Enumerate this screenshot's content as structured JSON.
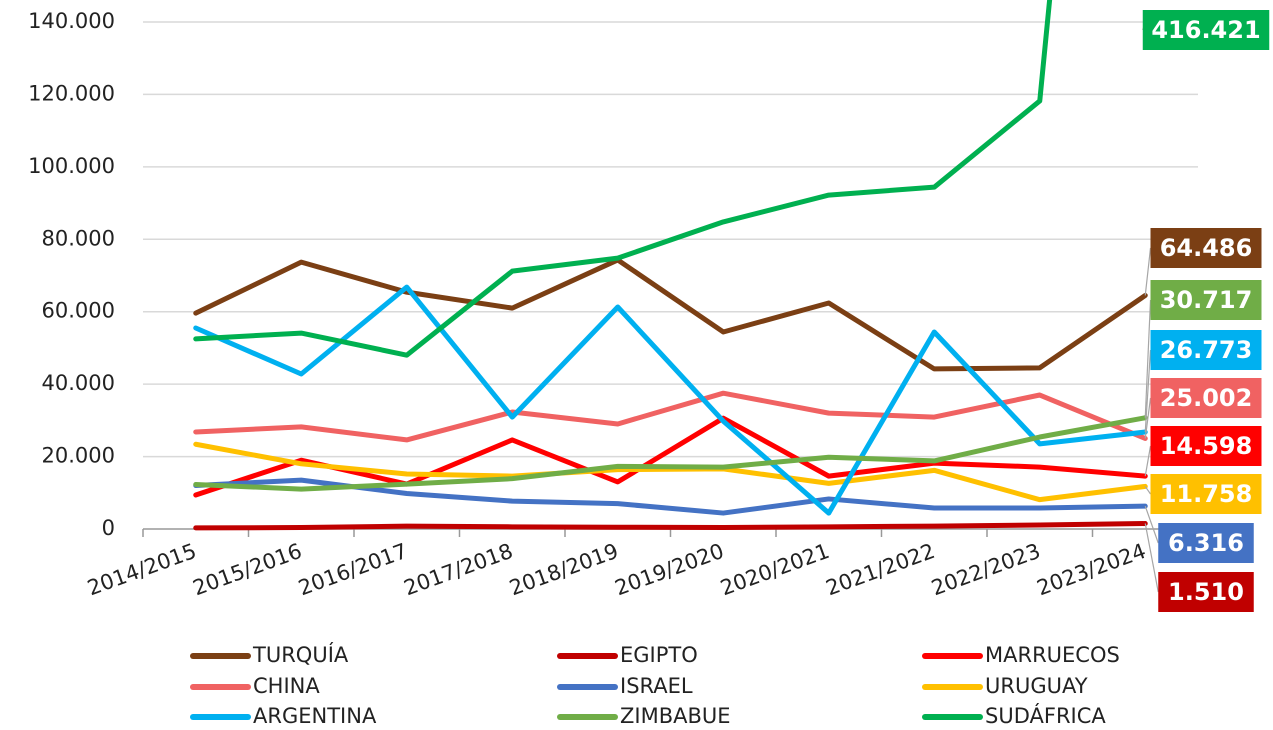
{
  "chart_data": {
    "type": "line",
    "categories": [
      "2014/2015",
      "2015/2016",
      "2016/2017",
      "2017/2018",
      "2018/2019",
      "2019/2020",
      "2020/2021",
      "2021/2022",
      "2022/2023",
      "2023/2024"
    ],
    "ylim": [
      0,
      140000
    ],
    "yticks": [
      0,
      {
        "value": 20000,
        "label": "20.000"
      },
      {
        "value": 40000,
        "label": "40.000"
      },
      {
        "value": 60000,
        "label": "60.000"
      },
      {
        "value": 80000,
        "label": "80.000"
      },
      {
        "value": 100000,
        "label": "100.000"
      },
      {
        "value": 120000,
        "label": "120.000"
      },
      {
        "value": 140000,
        "label": "140.000"
      }
    ],
    "grid": true,
    "legend": "bottom",
    "series": [
      {
        "name": "TURQUÍA",
        "color": "#7b3f14",
        "values": [
          59600,
          73700,
          65400,
          61000,
          74300,
          54400,
          62400,
          44200,
          44500,
          64486
        ],
        "value_labels": [
          null,
          null,
          null,
          null,
          null,
          null,
          null,
          null,
          null,
          "64.486"
        ]
      },
      {
        "name": "EGIPTO",
        "color": "#c00000",
        "values": [
          300,
          400,
          800,
          600,
          500,
          400,
          600,
          800,
          1100,
          1510
        ],
        "value_labels": [
          null,
          null,
          null,
          null,
          null,
          null,
          null,
          null,
          null,
          "1.510"
        ]
      },
      {
        "name": "MARRUECOS",
        "color": "#ff0000",
        "values": [
          9400,
          19000,
          12400,
          24600,
          13000,
          30600,
          14600,
          18200,
          17100,
          14598
        ],
        "value_labels": [
          null,
          null,
          null,
          null,
          null,
          null,
          null,
          null,
          null,
          "14.598"
        ]
      },
      {
        "name": "CHINA",
        "color": "#f06262",
        "values": [
          26800,
          28200,
          24600,
          32300,
          29000,
          37500,
          32000,
          30900,
          37000,
          25002
        ],
        "value_labels": [
          null,
          null,
          null,
          null,
          null,
          null,
          null,
          null,
          null,
          "25.002"
        ]
      },
      {
        "name": "ISRAEL",
        "color": "#4472c4",
        "values": [
          12000,
          13500,
          9800,
          7700,
          7000,
          4400,
          8300,
          5800,
          5800,
          6316
        ],
        "value_labels": [
          null,
          null,
          null,
          null,
          null,
          null,
          null,
          null,
          null,
          "6.316"
        ]
      },
      {
        "name": "URUGUAY",
        "color": "#ffc000",
        "values": [
          23400,
          18000,
          15200,
          14600,
          16400,
          16600,
          12600,
          16200,
          8100,
          11758
        ],
        "value_labels": [
          null,
          null,
          null,
          null,
          null,
          null,
          null,
          null,
          null,
          "11.758"
        ]
      },
      {
        "name": "ARGENTINA",
        "color": "#00b0f0",
        "values": [
          55500,
          42800,
          66800,
          30900,
          61300,
          29800,
          4400,
          54400,
          23500,
          26773
        ],
        "value_labels": [
          null,
          null,
          null,
          null,
          null,
          null,
          null,
          null,
          null,
          "26.773"
        ]
      },
      {
        "name": "ZIMBABUE",
        "color": "#70ad47",
        "values": [
          12300,
          11000,
          12400,
          13900,
          17300,
          17100,
          19800,
          18800,
          25400,
          30717
        ],
        "value_labels": [
          null,
          null,
          null,
          null,
          null,
          null,
          null,
          null,
          null,
          "30.717"
        ]
      },
      {
        "name": "SUDÁFRICA",
        "color": "#00b050",
        "values": [
          52500,
          54100,
          48000,
          71200,
          74800,
          84800,
          92200,
          94400,
          118200,
          416421
        ],
        "value_labels": [
          null,
          null,
          null,
          null,
          null,
          null,
          null,
          null,
          null,
          "416.421"
        ]
      }
    ]
  }
}
